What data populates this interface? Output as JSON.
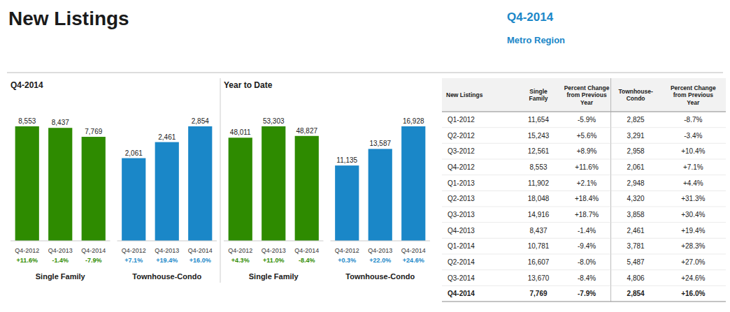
{
  "title": "New Listings",
  "subtitle": [
    "Q4-2014",
    "Metro Region"
  ],
  "chart_data": [
    {
      "type": "bar",
      "title": "Q4-2014",
      "xlabel": "Single Family",
      "color": "#2e8b00",
      "categories": [
        "Q4-2012",
        "Q4-2013",
        "Q4-2014"
      ],
      "values": [
        8553,
        8437,
        7769
      ],
      "value_labels": [
        "8,553",
        "8,437",
        "7,769"
      ],
      "annotations": [
        "+11.6%",
        "-1.4%",
        "-7.9%"
      ],
      "data_labels": true,
      "tick_labels": false,
      "grid": false,
      "ylim": [
        0,
        10691.25
      ]
    },
    {
      "type": "bar",
      "xlabel": "Townhouse-Condo",
      "color": "#1a87c8",
      "categories": [
        "Q4-2012",
        "Q4-2013",
        "Q4-2014"
      ],
      "values": [
        2061,
        2461,
        2854
      ],
      "value_labels": [
        "2,061",
        "2,461",
        "2,854"
      ],
      "annotations": [
        "+7.1%",
        "+19.4%",
        "+16.0%"
      ],
      "data_labels": true,
      "tick_labels": false,
      "grid": false,
      "ylim": [
        0,
        3567.5
      ]
    },
    {
      "type": "bar",
      "title": "Year to Date",
      "xlabel": "Single Family",
      "color": "#2e8b00",
      "categories": [
        "Q4-2012",
        "Q4-2013",
        "Q4-2014"
      ],
      "values": [
        48011,
        53303,
        48827
      ],
      "value_labels": [
        "48,011",
        "53,303",
        "48,827"
      ],
      "annotations": [
        "+4.3%",
        "+11.0%",
        "-8.4%"
      ],
      "data_labels": true,
      "tick_labels": false,
      "grid": false,
      "ylim": [
        0,
        66628.75
      ]
    },
    {
      "type": "bar",
      "xlabel": "Townhouse-Condo",
      "color": "#1a87c8",
      "categories": [
        "Q4-2012",
        "Q4-2013",
        "Q4-2014"
      ],
      "values": [
        11135,
        13587,
        16928
      ],
      "value_labels": [
        "11,135",
        "13,587",
        "16,928"
      ],
      "annotations": [
        "+0.3%",
        "+22.0%",
        "+24.6%"
      ],
      "data_labels": true,
      "tick_labels": false,
      "grid": false,
      "ylim": [
        0,
        21160
      ]
    },
    {
      "type": "table",
      "columns": [
        "New Listings",
        "Single\nFamily",
        "Percent Change\nfrom Previous\nYear",
        "Townhouse-\nCondo",
        "Percent Change\nfrom Previous\nYear"
      ],
      "rows": [
        [
          "Q1-2012",
          "11,654",
          "-5.9%",
          "2,825",
          "-8.7%"
        ],
        [
          "Q2-2012",
          "15,243",
          "+5.6%",
          "3,291",
          "-3.4%"
        ],
        [
          "Q3-2012",
          "12,561",
          "+8.9%",
          "2,958",
          "+10.4%"
        ],
        [
          "Q4-2012",
          "8,553",
          "+11.6%",
          "2,061",
          "+7.1%"
        ],
        [
          "Q1-2013",
          "11,902",
          "+2.1%",
          "2,948",
          "+4.4%"
        ],
        [
          "Q2-2013",
          "18,048",
          "+18.4%",
          "4,320",
          "+31.3%"
        ],
        [
          "Q3-2013",
          "14,916",
          "+18.7%",
          "3,858",
          "+30.4%"
        ],
        [
          "Q4-2013",
          "8,437",
          "-1.4%",
          "2,461",
          "+19.4%"
        ],
        [
          "Q1-2014",
          "10,781",
          "-9.4%",
          "3,781",
          "+28.3%"
        ],
        [
          "Q2-2014",
          "16,607",
          "-8.0%",
          "5,487",
          "+27.0%"
        ],
        [
          "Q3-2014",
          "13,670",
          "-8.4%",
          "4,806",
          "+24.6%"
        ],
        [
          "Q4-2014",
          "7,769",
          "-7.9%",
          "2,854",
          "+16.0%"
        ]
      ]
    }
  ]
}
